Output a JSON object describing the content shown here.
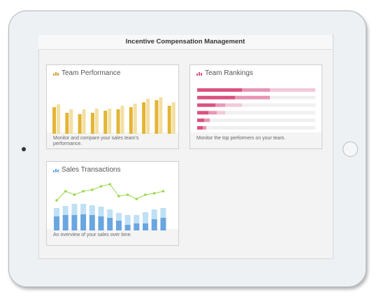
{
  "header": {
    "title": "Incentive Compensation Management"
  },
  "tiles": [
    {
      "title": "Team Performance",
      "description": "Monitor and compare your sales team's performance.",
      "chart_data": {
        "type": "bar",
        "series": [
          {
            "color": "#e3b535",
            "values": [
              38,
              30,
              28,
              30,
              33,
              35,
              38,
              45,
              48,
              40
            ]
          },
          {
            "color": "#f3dfa2",
            "values": [
              42,
              35,
              35,
              36,
              36,
              40,
              43,
              50,
              52,
              45
            ]
          }
        ]
      }
    },
    {
      "title": "Team Rankings",
      "description": "Monitor the top performers on your team.",
      "chart_data": {
        "type": "barh",
        "series": [
          {
            "color": "#d9537f",
            "values": [
              64,
              54,
              26,
              16,
              10,
              8
            ]
          },
          {
            "color": "#e896b5",
            "values": [
              40,
              50,
              14,
              12,
              8,
              5
            ]
          },
          {
            "color": "#f2c9da",
            "values": [
              65,
              0,
              24,
              12,
              0,
              0
            ]
          }
        ]
      }
    },
    {
      "title": "Sales Transactions",
      "description": "An overview of your sales over time.",
      "chart_data": {
        "type": "combo",
        "series": [
          {
            "color": "#6aa6e0",
            "values": [
              20,
              22,
              22,
              23,
              22,
              20,
              18,
              14,
              8,
              10,
              10,
              16,
              18
            ]
          },
          {
            "color": "#bfe0f5",
            "values": [
              12,
              13,
              16,
              15,
              14,
              14,
              12,
              11,
              14,
              12,
              16,
              14,
              14
            ]
          },
          {
            "color": "#9ad84a",
            "type": "line",
            "values": [
              43,
              56,
              51,
              56,
              58,
              63,
              66,
              49,
              51,
              45,
              51,
              53,
              56
            ]
          }
        ]
      }
    }
  ]
}
